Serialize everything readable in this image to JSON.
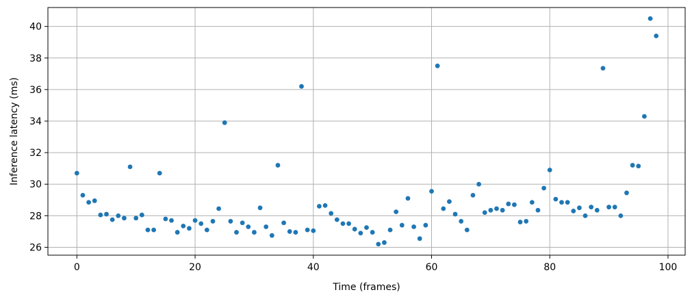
{
  "chart_data": {
    "type": "scatter",
    "title": "",
    "xlabel": "Time (frames)",
    "ylabel": "Inference latency (ms)",
    "xlim": [
      -4.9,
      102.9
    ],
    "ylim": [
      25.5,
      41.2
    ],
    "xticks": [
      0,
      20,
      40,
      60,
      80,
      100
    ],
    "yticks": [
      26,
      28,
      30,
      32,
      34,
      36,
      38,
      40
    ],
    "grid": true,
    "legend": "none",
    "marker_color": "#1f77b4",
    "series": [
      {
        "x": [
          0,
          1,
          2,
          3,
          4,
          5,
          6,
          7,
          8,
          9,
          10,
          11,
          12,
          13,
          14,
          15,
          16,
          17,
          18,
          19,
          20,
          21,
          22,
          23,
          24,
          25,
          26,
          27,
          28,
          29,
          30,
          31,
          32,
          33,
          34,
          35,
          36,
          37,
          38,
          39,
          40,
          41,
          42,
          43,
          44,
          45,
          46,
          47,
          48,
          49,
          50,
          51,
          52,
          53,
          54,
          55,
          56,
          57,
          58,
          59,
          60,
          61,
          62,
          63,
          64,
          65,
          66,
          67,
          68,
          69,
          70,
          71,
          72,
          73,
          74,
          75,
          76,
          77,
          78,
          79,
          80,
          81,
          82,
          83,
          84,
          85,
          86,
          87,
          88,
          89,
          90,
          91,
          92,
          93,
          94,
          95,
          96,
          97,
          98
        ],
        "y": [
          30.7,
          29.3,
          28.85,
          28.95,
          28.05,
          28.1,
          27.75,
          28.0,
          27.85,
          31.1,
          27.85,
          28.05,
          27.1,
          27.1,
          30.7,
          27.8,
          27.7,
          26.95,
          27.35,
          27.2,
          27.7,
          27.5,
          27.1,
          27.65,
          28.45,
          33.9,
          27.65,
          26.95,
          27.55,
          27.3,
          26.95,
          28.5,
          27.3,
          26.75,
          31.2,
          27.55,
          27.0,
          26.95,
          36.2,
          27.1,
          27.05,
          28.6,
          28.65,
          28.15,
          27.75,
          27.5,
          27.5,
          27.15,
          26.9,
          27.25,
          26.95,
          26.2,
          26.3,
          27.1,
          28.25,
          27.4,
          29.1,
          27.3,
          26.55,
          27.4,
          29.55,
          37.5,
          28.45,
          28.9,
          28.1,
          27.65,
          27.1,
          29.3,
          30.0,
          28.2,
          28.35,
          28.45,
          28.35,
          28.75,
          28.7,
          27.6,
          27.65,
          28.85,
          28.35,
          29.75,
          30.9,
          29.05,
          28.85,
          28.85,
          28.3,
          28.5,
          28.0,
          28.55,
          28.35,
          37.35,
          28.55,
          28.55,
          28.0,
          29.45,
          31.2,
          31.15,
          34.3,
          40.5,
          39.4
        ]
      }
    ]
  }
}
